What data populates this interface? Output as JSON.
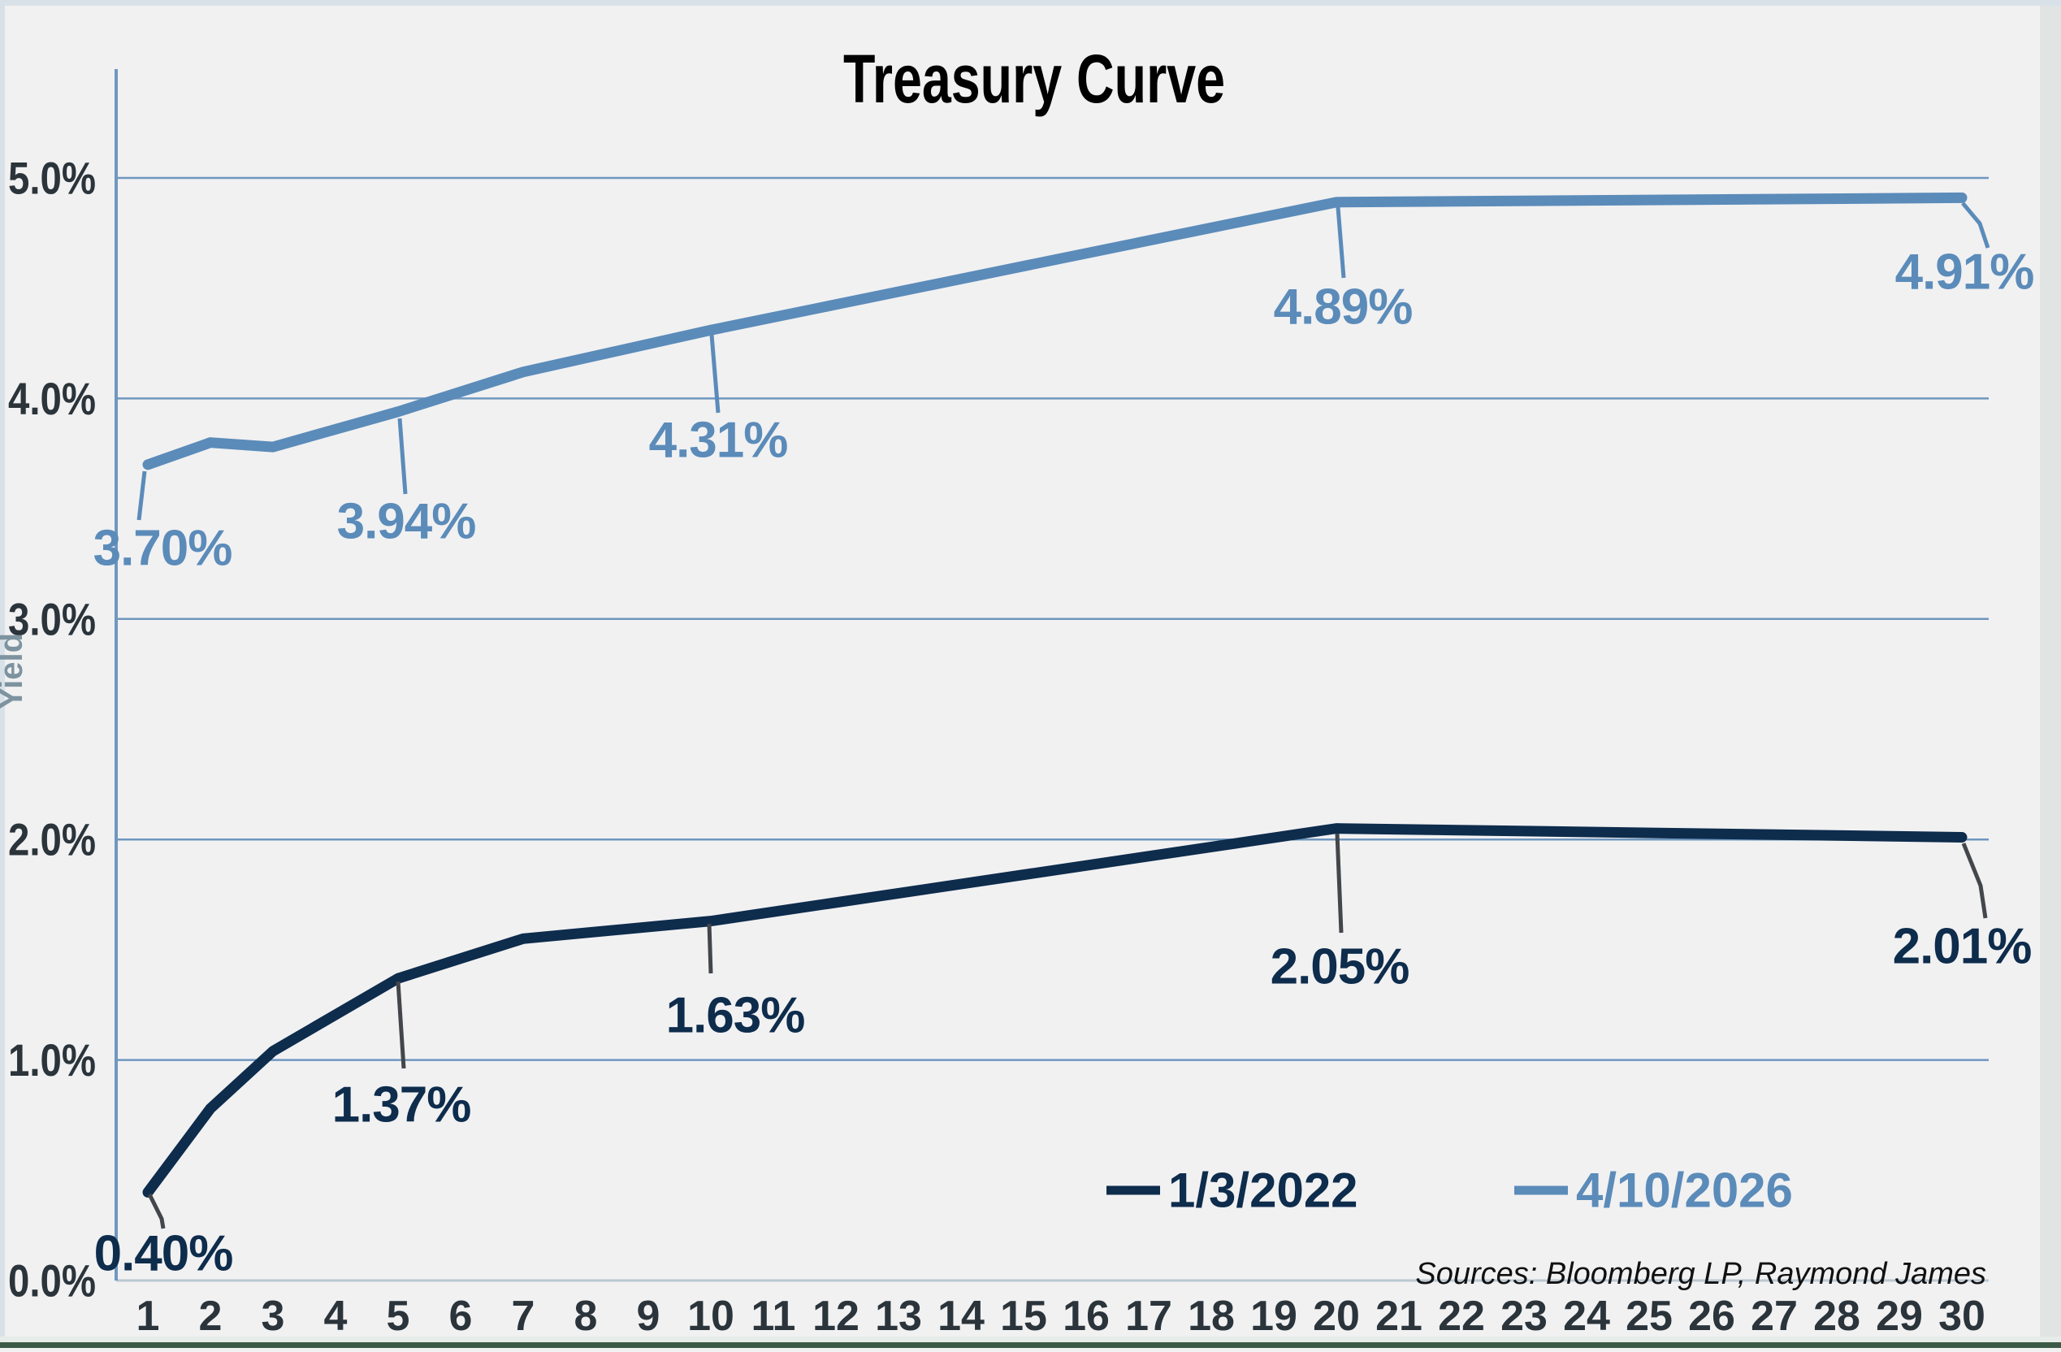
{
  "title": "Treasury Curve",
  "y_axis": {
    "label": "Yield",
    "ticks": [
      "0.0%",
      "1.0%",
      "2.0%",
      "3.0%",
      "4.0%",
      "5.0%"
    ]
  },
  "x_axis": {
    "ticks": [
      1,
      2,
      3,
      4,
      5,
      6,
      7,
      8,
      9,
      10,
      11,
      12,
      13,
      14,
      15,
      16,
      17,
      18,
      19,
      20,
      21,
      22,
      23,
      24,
      25,
      26,
      27,
      28,
      29,
      30
    ]
  },
  "legend": [
    {
      "label": "1/3/2022",
      "color": "#0e2c4c"
    },
    {
      "label": "4/10/2026",
      "color": "#5b8bb9"
    }
  ],
  "source_note": "Sources: Bloomberg LP, Raymond James",
  "colors": {
    "background": "#f1f1f2",
    "gridline": "#6f97bf",
    "baseline": "#bac8d3",
    "axis_text": "#2a343a",
    "leader_dark": "#43464a",
    "frame_top_left": "#d9e1e8",
    "frame_right": "#e0e5e3",
    "frame_bottom_light": "#e7ebe9",
    "frame_bottom_green": "#3c5a45"
  },
  "chart_data": {
    "type": "line",
    "x": [
      1,
      2,
      3,
      5,
      7,
      10,
      20,
      30
    ],
    "xlim": [
      1,
      30
    ],
    "ylim": [
      0,
      5.5
    ],
    "grid": "horizontal",
    "legend_position": "inside-bottom-right",
    "series": [
      {
        "name": "1/3/2022",
        "color": "#0e2c4c",
        "values": [
          0.4,
          0.78,
          1.04,
          1.37,
          1.55,
          1.63,
          2.05,
          2.01
        ],
        "labeled_points": [
          {
            "x": 1,
            "label": "0.40%"
          },
          {
            "x": 5,
            "label": "1.37%"
          },
          {
            "x": 10,
            "label": "1.63%"
          },
          {
            "x": 20,
            "label": "2.05%"
          },
          {
            "x": 30,
            "label": "2.01%"
          }
        ]
      },
      {
        "name": "4/10/2026",
        "color": "#5b8bb9",
        "values": [
          3.7,
          3.8,
          3.78,
          3.94,
          4.12,
          4.31,
          4.89,
          4.91
        ],
        "labeled_points": [
          {
            "x": 1,
            "label": "3.70%"
          },
          {
            "x": 5,
            "label": "3.94%"
          },
          {
            "x": 10,
            "label": "4.31%"
          },
          {
            "x": 20,
            "label": "4.89%"
          },
          {
            "x": 30,
            "label": "4.91%"
          }
        ]
      }
    ]
  }
}
